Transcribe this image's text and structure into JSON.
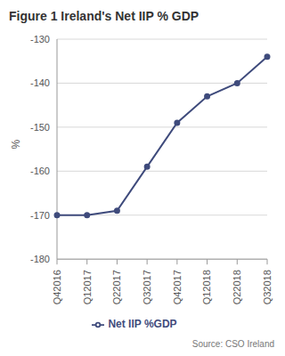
{
  "chart_data": {
    "type": "line",
    "title": "Figure 1 Ireland's Net IIP % GDP",
    "y_label": "%",
    "categories": [
      "Q42016",
      "Q12017",
      "Q22017",
      "Q32017",
      "Q42017",
      "Q12018",
      "Q22018",
      "Q32018"
    ],
    "series": [
      {
        "name": "Net IIP %GDP",
        "color": "#3f4b7c",
        "values": [
          -170,
          -170,
          -169,
          -159,
          -149,
          -143,
          -140,
          -134
        ]
      }
    ],
    "ylim": [
      -180,
      -130
    ],
    "yticks": [
      -180,
      -170,
      -160,
      -150,
      -140,
      -130
    ],
    "grid": true,
    "legend": "bottom",
    "marker": "circle",
    "source": "Source: CSO Ireland"
  }
}
